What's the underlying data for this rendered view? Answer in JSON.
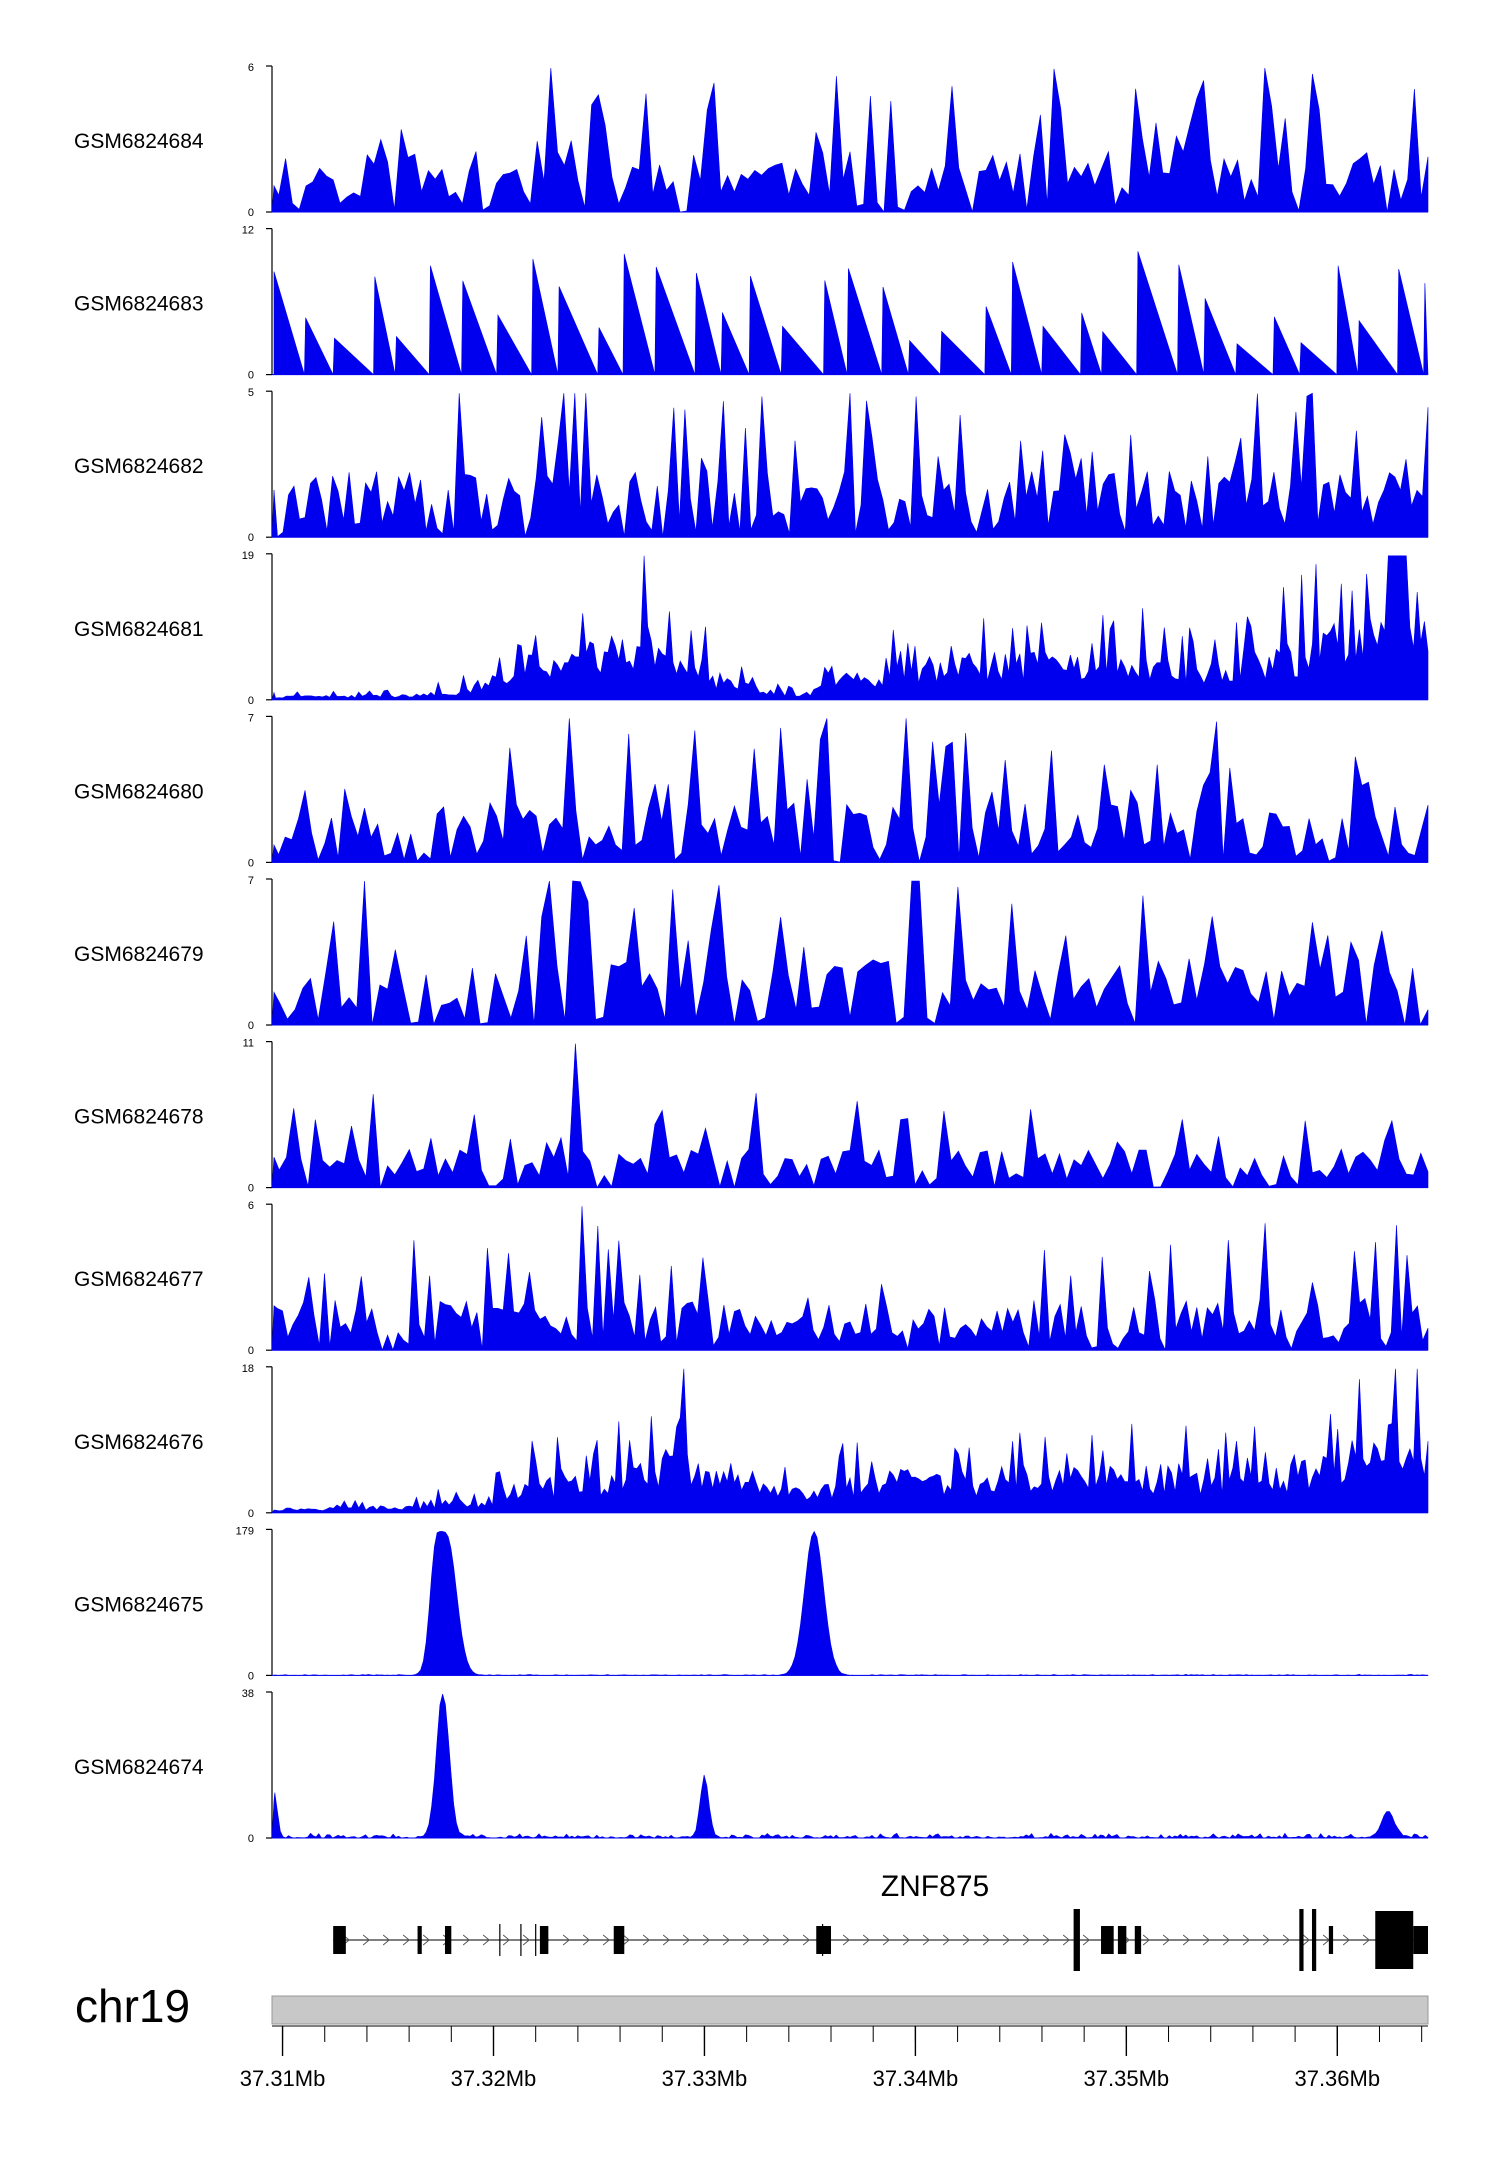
{
  "chart_data": {
    "type": "area",
    "title": "",
    "xlabel": "",
    "ylabel": "",
    "track_color": "#0000ee",
    "gene_color": "#000000",
    "chromosome_color": "#c8c8c8",
    "region": {
      "chromosome": "chr19",
      "start_mb": 37.3095,
      "end_mb": 37.3643
    },
    "xaxis": {
      "ticks": [
        37.31,
        37.32,
        37.33,
        37.34,
        37.35,
        37.36
      ],
      "tick_labels": [
        "37.31Mb",
        "37.32Mb",
        "37.33Mb",
        "37.34Mb",
        "37.35Mb",
        "37.36Mb"
      ]
    },
    "series": [
      {
        "name": "GSM6824684",
        "ylim": [
          0,
          6
        ],
        "ymin_label": "0",
        "ymax_label": "6",
        "style": "spiky",
        "seed": 11,
        "n": 170,
        "base": 0.5,
        "level": 2.2
      },
      {
        "name": "GSM6824683",
        "ylim": [
          0,
          12
        ],
        "ymin_label": "0",
        "ymax_label": "12",
        "style": "sparse",
        "seed": 23,
        "n": 36,
        "base": 0.0,
        "level": 7.0
      },
      {
        "name": "GSM6824682",
        "ylim": [
          0,
          5
        ],
        "ymin_label": "0",
        "ymax_label": "5",
        "style": "spiky",
        "seed": 37,
        "n": 210,
        "base": 0.6,
        "level": 2.0
      },
      {
        "name": "GSM6824681",
        "ylim": [
          0,
          19
        ],
        "ymin_label": "0",
        "ymax_label": "19",
        "style": "profile",
        "seed": 41,
        "n": 320,
        "profile": [
          [
            37.3095,
            0.4
          ],
          [
            37.316,
            0.6
          ],
          [
            37.3185,
            1.2
          ],
          [
            37.321,
            4.5
          ],
          [
            37.3235,
            5.5
          ],
          [
            37.3255,
            7.5
          ],
          [
            37.327,
            8.5
          ],
          [
            37.329,
            6.0
          ],
          [
            37.3305,
            3.0
          ],
          [
            37.332,
            2.0
          ],
          [
            37.3345,
            0.5
          ],
          [
            37.3365,
            3.0
          ],
          [
            37.339,
            4.0
          ],
          [
            37.342,
            5.0
          ],
          [
            37.3455,
            5.5
          ],
          [
            37.349,
            4.5
          ],
          [
            37.3515,
            5.0
          ],
          [
            37.3545,
            4.0
          ],
          [
            37.3575,
            6.0
          ],
          [
            37.3605,
            9.0
          ],
          [
            37.3625,
            11.0
          ],
          [
            37.3643,
            8.0
          ]
        ]
      },
      {
        "name": "GSM6824680",
        "ylim": [
          0,
          7
        ],
        "ymin_label": "0",
        "ymax_label": "7",
        "style": "spiky",
        "seed": 53,
        "n": 175,
        "base": 0.6,
        "level": 2.6
      },
      {
        "name": "GSM6824679",
        "ylim": [
          0,
          7
        ],
        "ymin_label": "0",
        "ymax_label": "7",
        "style": "spiky",
        "seed": 67,
        "n": 150,
        "base": 0.4,
        "level": 2.8
      },
      {
        "name": "GSM6824678",
        "ylim": [
          0,
          11
        ],
        "ymin_label": "0",
        "ymax_label": "11",
        "style": "spiky",
        "seed": 71,
        "n": 160,
        "base": 0.3,
        "level": 2.6
      },
      {
        "name": "GSM6824677",
        "ylim": [
          0,
          6
        ],
        "ymin_label": "0",
        "ymax_label": "6",
        "style": "spiky",
        "seed": 83,
        "n": 220,
        "base": 0.8,
        "level": 1.9
      },
      {
        "name": "GSM6824676",
        "ylim": [
          0,
          18
        ],
        "ymin_label": "0",
        "ymax_label": "18",
        "style": "profile",
        "seed": 97,
        "n": 320,
        "profile": [
          [
            37.3095,
            0.5
          ],
          [
            37.3165,
            0.8
          ],
          [
            37.318,
            1.5
          ],
          [
            37.3195,
            1.2
          ],
          [
            37.321,
            3.5
          ],
          [
            37.3245,
            4.0
          ],
          [
            37.327,
            5.0
          ],
          [
            37.329,
            8.0
          ],
          [
            37.3305,
            5.0
          ],
          [
            37.3325,
            3.0
          ],
          [
            37.3345,
            2.5
          ],
          [
            37.3365,
            3.5
          ],
          [
            37.3395,
            4.5
          ],
          [
            37.3425,
            3.5
          ],
          [
            37.346,
            4.5
          ],
          [
            37.349,
            5.0
          ],
          [
            37.3525,
            5.0
          ],
          [
            37.355,
            4.0
          ],
          [
            37.358,
            5.0
          ],
          [
            37.3605,
            7.0
          ],
          [
            37.3625,
            9.5
          ],
          [
            37.3643,
            7.5
          ]
        ]
      },
      {
        "name": "GSM6824675",
        "ylim": [
          0,
          179
        ],
        "ymin_label": "0",
        "ymax_label": "179",
        "style": "peaks",
        "seed": 101,
        "n": 420,
        "base": 0.9,
        "peaks": [
          [
            37.3178,
            170,
            0.00045
          ],
          [
            37.3172,
            90,
            0.00025
          ],
          [
            37.3352,
            179,
            0.00045
          ]
        ]
      },
      {
        "name": "GSM6824674",
        "ylim": [
          0,
          38
        ],
        "ymin_label": "0",
        "ymax_label": "38",
        "style": "peaks",
        "seed": 113,
        "n": 420,
        "base": 0.9,
        "peaks": [
          [
            37.3176,
            38,
            0.0003
          ],
          [
            37.3096,
            12,
            0.00015
          ],
          [
            37.33,
            16,
            0.0002
          ],
          [
            37.3624,
            7,
            0.0003
          ]
        ]
      }
    ],
    "gene": {
      "name": "ZNF875",
      "strand": "+",
      "exons": [
        [
          37.3124,
          37.313,
          "s"
        ],
        [
          37.3164,
          37.3166,
          "s"
        ],
        [
          37.3177,
          37.318,
          "s"
        ],
        [
          37.3222,
          37.3226,
          "s"
        ],
        [
          37.3257,
          37.3262,
          "s"
        ],
        [
          37.3353,
          37.336,
          "s"
        ],
        [
          37.3475,
          37.3478,
          "t"
        ],
        [
          37.3488,
          37.3494,
          "s"
        ],
        [
          37.3496,
          37.35,
          "s"
        ],
        [
          37.3504,
          37.3507,
          "s"
        ],
        [
          37.3582,
          37.3584,
          "t"
        ],
        [
          37.3588,
          37.359,
          "t"
        ],
        [
          37.3596,
          37.3598,
          "s"
        ],
        [
          37.3618,
          37.3636,
          "l"
        ],
        [
          37.3636,
          37.3643,
          "s"
        ]
      ],
      "ticks": [
        37.3203,
        37.3213,
        37.322,
        37.3356
      ]
    }
  }
}
